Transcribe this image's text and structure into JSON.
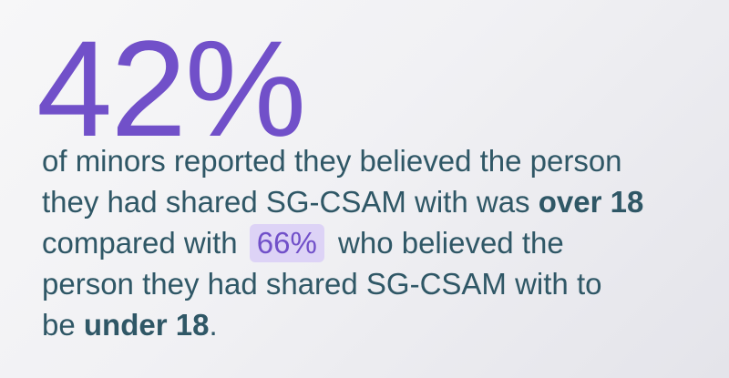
{
  "stat": {
    "big_value": "42%"
  },
  "statement": {
    "line1": "of minors reported they believed the person",
    "line2_text": "they had shared SG-CSAM with was",
    "line2_bold": "over 18",
    "line3_text_before": "compared with",
    "line3_highlight": "66%",
    "line3_text_after": "who believed the",
    "line4": "person they had shared SG-CSAM with to",
    "line5_text": "be",
    "line5_bold": "under 18",
    "line5_end": "."
  },
  "colors": {
    "accent": "#7150c9",
    "highlight_bg": "#ddd3f6",
    "text": "#2f5766"
  }
}
